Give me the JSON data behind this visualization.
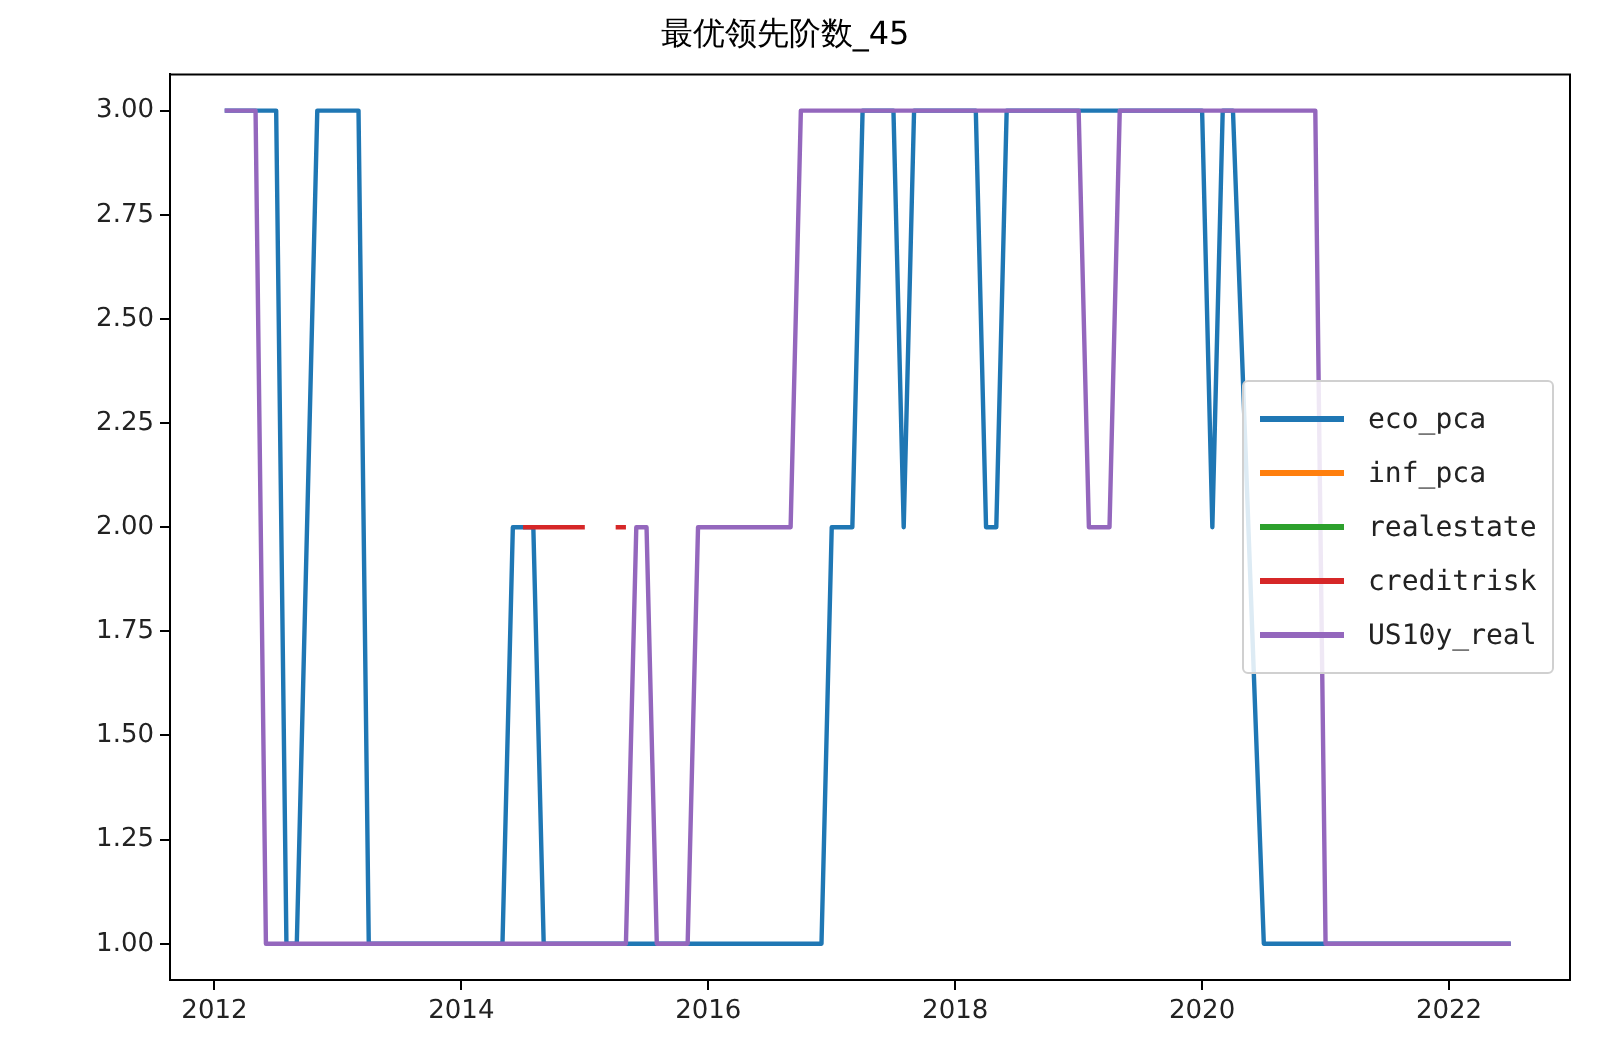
{
  "chart_data": {
    "type": "line",
    "title": "最优领先阶数_45",
    "xlim": [
      2011.64,
      2022.98
    ],
    "xticks": [
      2012,
      2014,
      2016,
      2018,
      2020,
      2022
    ],
    "ylim": [
      0.913,
      3.087
    ],
    "yticks": [
      {
        "value": 1,
        "label": "1.00"
      },
      {
        "value": 1.25,
        "label": "1.25"
      },
      {
        "value": 1.5,
        "label": "1.50"
      },
      {
        "value": 1.75,
        "label": "1.75"
      },
      {
        "value": 2,
        "label": "2.00"
      },
      {
        "value": 2.25,
        "label": "2.25"
      },
      {
        "value": 2.5,
        "label": "2.50"
      },
      {
        "value": 2.75,
        "label": "2.75"
      },
      {
        "value": 3,
        "label": "3.00"
      }
    ],
    "grid": false,
    "legend": "right",
    "marker": "none",
    "line_style": "solid",
    "series": [
      {
        "name": "eco_pca",
        "color": "#1f77b4",
        "x": [
          2012.083,
          2012.5,
          2012.583,
          2012.667,
          2012.833,
          2013.167,
          2013.25,
          2014.333,
          2014.417,
          2014.583,
          2014.667,
          2016.917,
          2017.0,
          2017.167,
          2017.25,
          2017.5,
          2017.583,
          2017.667,
          2018.167,
          2018.25,
          2018.333,
          2018.417,
          2020.0,
          2020.083,
          2020.167,
          2020.25,
          2020.5,
          2022.5
        ],
        "values": [
          3,
          3,
          1,
          1,
          3,
          3,
          1,
          1,
          2,
          2,
          1,
          1,
          2,
          2,
          3,
          3,
          2,
          3,
          3,
          2,
          2,
          3,
          3,
          2,
          3,
          3,
          1,
          1
        ]
      },
      {
        "name": "inf_pca",
        "color": "#ff7f0e"
      },
      {
        "name": "realestate",
        "color": "#2ca02c"
      },
      {
        "name": "creditrisk",
        "color": "#d62728",
        "x": [
          2014.5,
          2015.0,
          2015.083,
          2015.25,
          2015.333
        ],
        "values": [
          2,
          2,
          null,
          2,
          2
        ]
      },
      {
        "name": "US10y_real",
        "color": "#9467bd",
        "x": [
          2012.083,
          2012.333,
          2012.417,
          2015.333,
          2015.417,
          2015.5,
          2015.583,
          2015.833,
          2015.917,
          2016.667,
          2016.75,
          2019.0,
          2019.083,
          2019.25,
          2019.333,
          2020.917,
          2021.0,
          2022.5
        ],
        "values": [
          3,
          3,
          1,
          1,
          2,
          2,
          1,
          1,
          2,
          2,
          3,
          3,
          2,
          2,
          3,
          3,
          1,
          1
        ]
      }
    ]
  }
}
